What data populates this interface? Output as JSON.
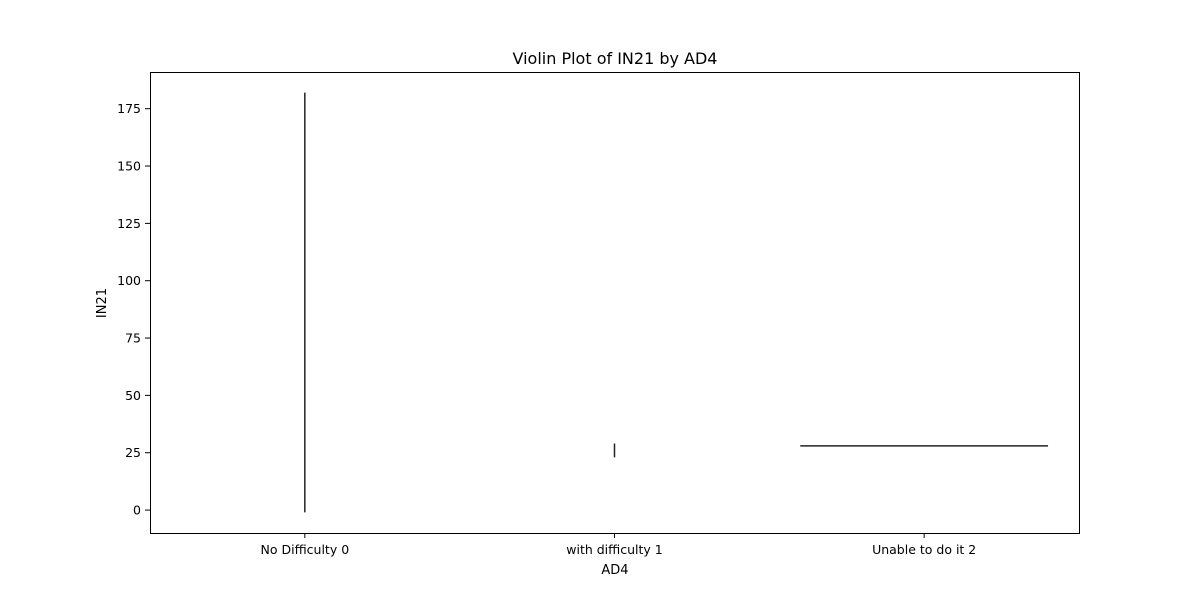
{
  "chart_data": {
    "type": "violin",
    "title": "Violin Plot of IN21 by AD4",
    "xlabel": "AD4",
    "ylabel": "IN21",
    "categories": [
      "No Difficulty 0",
      "with difficulty 1",
      "Unable to do it 2"
    ],
    "yticks": [
      0,
      25,
      50,
      75,
      100,
      125,
      150,
      175
    ],
    "ylim": [
      -10,
      191
    ],
    "grid": false,
    "legend": false,
    "colors": {
      "mark": "#222222",
      "axes": "#000000",
      "background": "#ffffff"
    },
    "violins": [
      {
        "category": "No Difficulty 0",
        "shape": "vertical",
        "min": -1,
        "max": 182
      },
      {
        "category": "with difficulty 1",
        "shape": "vertical",
        "min": 23,
        "max": 29
      },
      {
        "category": "Unable to do it 2",
        "shape": "horizontal",
        "value": 28
      }
    ]
  }
}
